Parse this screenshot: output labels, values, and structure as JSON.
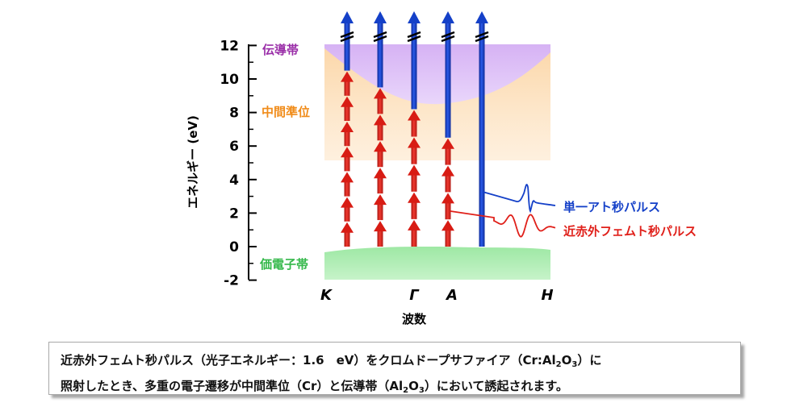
{
  "axis": {
    "ylabel": "エネルギー (eV)",
    "xlabel": "波数",
    "yticks": [
      12,
      10,
      8,
      6,
      4,
      2,
      0,
      -2
    ]
  },
  "bands": {
    "conduction": "伝導帯",
    "intermediate": "中間準位",
    "valence": "価電子帯"
  },
  "k_points": [
    "K",
    "Γ",
    "A",
    "H"
  ],
  "pulses": {
    "attosecond": "単一アト秒パルス",
    "femtosecond": "近赤外フェムト秒パルス"
  },
  "caption": {
    "line1_a": "近赤外フェムト秒パルス（光子エネルギー：1.6　eV）をクロムドープサファイア（Cr:Al",
    "line1_sub1": "2",
    "line1_b": "O",
    "line1_sub2": "3",
    "line1_c": "）に",
    "line2_a": "照射したとき、多重の電子遷移が中間準位（Cr）と伝導帯（Al",
    "line2_sub1": "2",
    "line2_b": "O",
    "line2_sub2": "3",
    "line2_c": "）において誘起されます。"
  },
  "transitions": [
    {
      "name": "K",
      "top_ev": 10.5,
      "red_arrows": 7
    },
    {
      "name": "K-Gamma",
      "top_ev": 9.5,
      "red_arrows": 6
    },
    {
      "name": "Gamma",
      "top_ev": 8.2,
      "red_arrows": 5
    },
    {
      "name": "A",
      "top_ev": 6.5,
      "red_arrows": 4
    },
    {
      "name": "H",
      "top_ev": 0,
      "red_arrows": 0
    }
  ],
  "colors": {
    "conduction": "#d7b3f2",
    "intermediate": "#fbd7a8",
    "valence": "#9fe8a6",
    "red_arrow": "#e0201a",
    "blue_arrow": "#1440c8",
    "conduction_label": "#9a2ea8",
    "intermediate_label": "#f08c1a",
    "valence_label": "#34b84a",
    "atto_label": "#1440c8",
    "femto_label": "#e0201a"
  }
}
